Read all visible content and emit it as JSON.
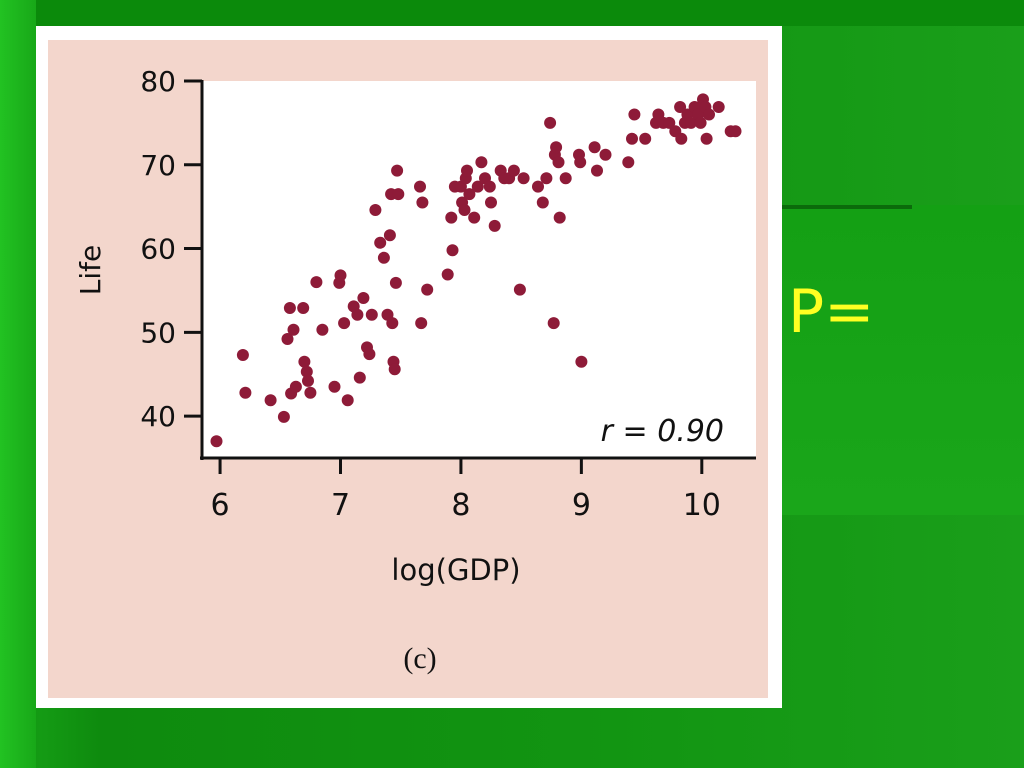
{
  "slide": {
    "side_text": "P=",
    "caption": "(c)"
  },
  "chart_data": {
    "type": "scatter",
    "title": "",
    "xlabel": "log(GDP)",
    "ylabel": "Life",
    "xlim": [
      5.85,
      10.45
    ],
    "ylim": [
      35,
      80
    ],
    "xticks": [
      6,
      7,
      8,
      9,
      10
    ],
    "yticks": [
      40,
      50,
      60,
      70,
      80
    ],
    "annotation": "r = 0.90",
    "grid": false,
    "legend": "none",
    "point_color": "#8e1b38",
    "series": [
      {
        "points": [
          [
            5.97,
            37
          ],
          [
            6.19,
            47.3
          ],
          [
            6.21,
            42.8
          ],
          [
            6.42,
            41.9
          ],
          [
            6.53,
            39.9
          ],
          [
            6.56,
            49.2
          ],
          [
            6.58,
            52.9
          ],
          [
            6.59,
            42.7
          ],
          [
            6.61,
            50.3
          ],
          [
            6.63,
            43.5
          ],
          [
            6.69,
            52.9
          ],
          [
            6.7,
            46.5
          ],
          [
            6.72,
            45.3
          ],
          [
            6.73,
            44.2
          ],
          [
            6.75,
            42.8
          ],
          [
            6.8,
            56.0
          ],
          [
            6.85,
            50.3
          ],
          [
            6.95,
            43.5
          ],
          [
            6.99,
            55.9
          ],
          [
            7.0,
            56.8
          ],
          [
            7.03,
            51.1
          ],
          [
            7.06,
            41.9
          ],
          [
            7.11,
            53.1
          ],
          [
            7.14,
            52.1
          ],
          [
            7.16,
            44.6
          ],
          [
            7.19,
            54.1
          ],
          [
            7.22,
            48.2
          ],
          [
            7.24,
            47.4
          ],
          [
            7.26,
            52.1
          ],
          [
            7.29,
            64.6
          ],
          [
            7.33,
            60.7
          ],
          [
            7.36,
            58.9
          ],
          [
            7.39,
            52.1
          ],
          [
            7.41,
            61.6
          ],
          [
            7.42,
            66.5
          ],
          [
            7.43,
            51.1
          ],
          [
            7.44,
            46.5
          ],
          [
            7.45,
            45.6
          ],
          [
            7.46,
            55.9
          ],
          [
            7.47,
            69.3
          ],
          [
            7.48,
            66.5
          ],
          [
            7.66,
            67.4
          ],
          [
            7.67,
            51.1
          ],
          [
            7.68,
            65.5
          ],
          [
            7.72,
            55.1
          ],
          [
            7.89,
            56.9
          ],
          [
            7.92,
            63.7
          ],
          [
            7.93,
            59.8
          ],
          [
            7.95,
            67.4
          ],
          [
            8.0,
            67.4
          ],
          [
            8.01,
            65.5
          ],
          [
            8.03,
            64.6
          ],
          [
            8.04,
            68.4
          ],
          [
            8.05,
            69.3
          ],
          [
            8.07,
            66.5
          ],
          [
            8.11,
            63.7
          ],
          [
            8.14,
            67.4
          ],
          [
            8.17,
            70.3
          ],
          [
            8.2,
            68.4
          ],
          [
            8.24,
            67.4
          ],
          [
            8.25,
            65.5
          ],
          [
            8.28,
            62.7
          ],
          [
            8.33,
            69.3
          ],
          [
            8.36,
            68.4
          ],
          [
            8.4,
            68.4
          ],
          [
            8.44,
            69.3
          ],
          [
            8.49,
            55.1
          ],
          [
            8.52,
            68.4
          ],
          [
            8.64,
            67.4
          ],
          [
            8.68,
            65.5
          ],
          [
            8.71,
            68.4
          ],
          [
            8.74,
            75.0
          ],
          [
            8.77,
            51.1
          ],
          [
            8.78,
            71.2
          ],
          [
            8.79,
            72.1
          ],
          [
            8.81,
            70.3
          ],
          [
            8.82,
            63.7
          ],
          [
            8.87,
            68.4
          ],
          [
            8.98,
            71.2
          ],
          [
            8.99,
            70.3
          ],
          [
            9.0,
            46.5
          ],
          [
            9.11,
            72.1
          ],
          [
            9.13,
            69.3
          ],
          [
            9.2,
            71.2
          ],
          [
            9.39,
            70.3
          ],
          [
            9.42,
            73.1
          ],
          [
            9.44,
            76.0
          ],
          [
            9.53,
            73.1
          ],
          [
            9.62,
            75.0
          ],
          [
            9.64,
            76.0
          ],
          [
            9.68,
            75.0
          ],
          [
            9.73,
            75.0
          ],
          [
            9.78,
            74.0
          ],
          [
            9.82,
            76.9
          ],
          [
            9.83,
            73.1
          ],
          [
            9.86,
            75.0
          ],
          [
            9.88,
            76.0
          ],
          [
            9.91,
            75.0
          ],
          [
            9.94,
            76.9
          ],
          [
            9.97,
            76.0
          ],
          [
            9.99,
            75.0
          ],
          [
            10.01,
            77.8
          ],
          [
            10.03,
            76.9
          ],
          [
            10.04,
            73.1
          ],
          [
            10.06,
            76.0
          ],
          [
            10.14,
            76.9
          ],
          [
            10.24,
            74.0
          ],
          [
            10.28,
            74.0
          ]
        ]
      }
    ]
  }
}
